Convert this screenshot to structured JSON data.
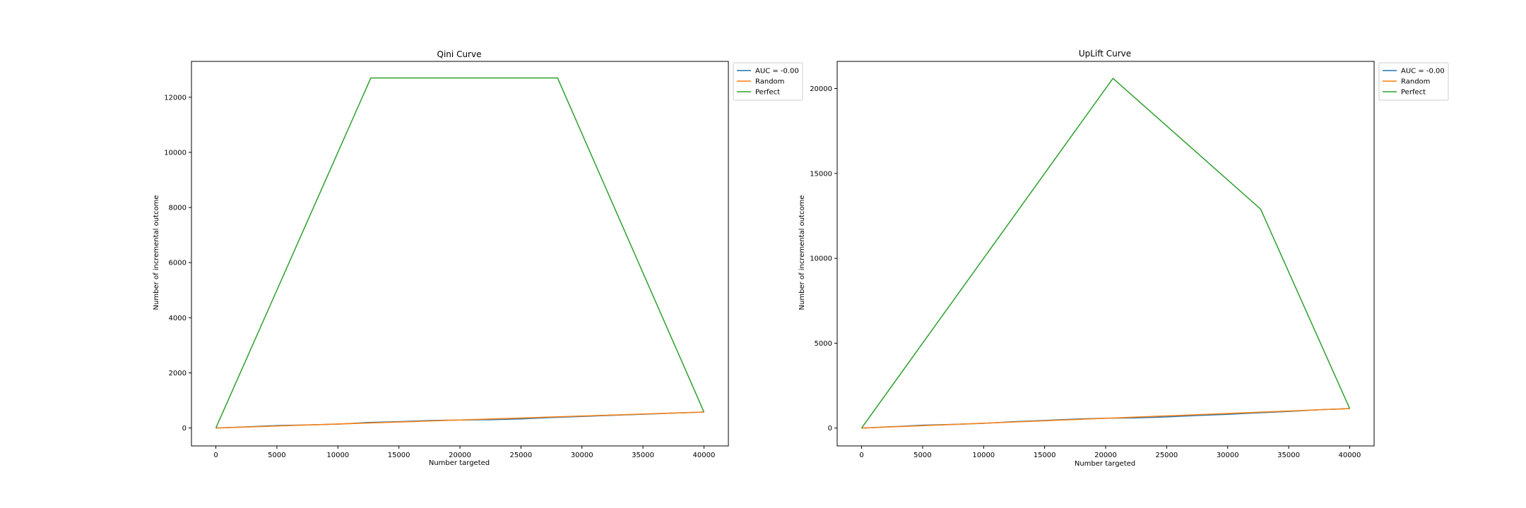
{
  "chart_data": [
    {
      "type": "line",
      "title": "Qini Curve",
      "xlabel": "Number targeted",
      "ylabel": "Number of incremental outcome",
      "xlim": [
        -2000,
        42000
      ],
      "ylim": [
        -650,
        13300
      ],
      "xticks": [
        0,
        5000,
        10000,
        15000,
        20000,
        25000,
        30000,
        35000,
        40000
      ],
      "yticks": [
        0,
        2000,
        4000,
        6000,
        8000,
        10000,
        12000
      ],
      "grid": false,
      "legend": "outside-upper-right",
      "series": [
        {
          "name": "AUC = -0.00",
          "color": "#1f77b4",
          "x": [
            0,
            2500,
            5000,
            7500,
            10000,
            12500,
            15000,
            17500,
            20000,
            22500,
            25000,
            27500,
            30000,
            32500,
            35000,
            37500,
            40000
          ],
          "y": [
            0,
            40,
            90,
            110,
            140,
            200,
            230,
            270,
            290,
            300,
            330,
            380,
            420,
            460,
            500,
            540,
            580
          ]
        },
        {
          "name": "Random",
          "color": "#ff7f0e",
          "x": [
            0,
            40000
          ],
          "y": [
            0,
            580
          ]
        },
        {
          "name": "Perfect",
          "color": "#2ca02c",
          "x": [
            0,
            12700,
            28000,
            40000
          ],
          "y": [
            0,
            12700,
            12700,
            580
          ]
        }
      ]
    },
    {
      "type": "line",
      "title": "UpLift Curve",
      "xlabel": "Number targeted",
      "ylabel": "Number of incremental outcome",
      "xlim": [
        -2000,
        42000
      ],
      "ylim": [
        -1050,
        21600
      ],
      "xticks": [
        0,
        5000,
        10000,
        15000,
        20000,
        25000,
        30000,
        35000,
        40000
      ],
      "yticks": [
        0,
        5000,
        10000,
        15000,
        20000
      ],
      "grid": false,
      "legend": "outside-upper-right",
      "series": [
        {
          "name": "AUC = -0.00",
          "color": "#1f77b4",
          "x": [
            0,
            2500,
            5000,
            7500,
            10000,
            12500,
            15000,
            17500,
            20000,
            22500,
            25000,
            27500,
            30000,
            32500,
            35000,
            37500,
            40000
          ],
          "y": [
            0,
            80,
            170,
            220,
            280,
            380,
            450,
            530,
            580,
            600,
            660,
            740,
            810,
            900,
            980,
            1080,
            1150
          ]
        },
        {
          "name": "Random",
          "color": "#ff7f0e",
          "x": [
            0,
            40000
          ],
          "y": [
            0,
            1150
          ]
        },
        {
          "name": "Perfect",
          "color": "#2ca02c",
          "x": [
            0,
            20600,
            32700,
            40000
          ],
          "y": [
            0,
            20600,
            12900,
            1150
          ]
        }
      ]
    }
  ]
}
